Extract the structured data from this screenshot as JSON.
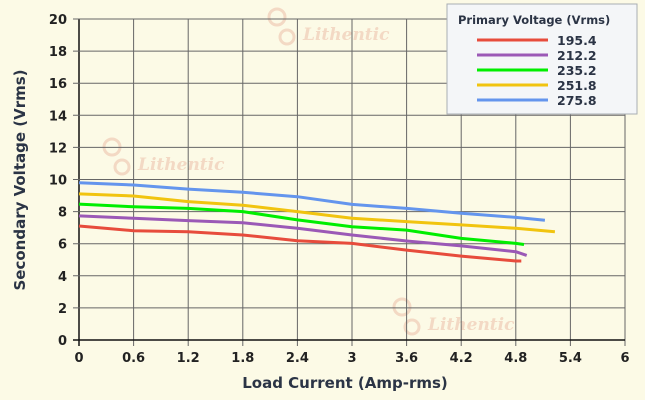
{
  "chart_data": {
    "type": "line",
    "xlabel": "Load Current (Amp-rms)",
    "ylabel": "Secondary Voltage (Vrms)",
    "xlim": [
      0,
      6
    ],
    "ylim": [
      0,
      20
    ],
    "xticks": [
      "0",
      "0.6",
      "1.2",
      "1.8",
      "2.4",
      "3",
      "3.6",
      "4.2",
      "4.8",
      "5.4",
      "6"
    ],
    "yticks": [
      "0",
      "2",
      "4",
      "6",
      "8",
      "10",
      "12",
      "14",
      "16",
      "18",
      "20"
    ],
    "grid": true,
    "legend": {
      "title": "Primary Voltage (Vrms)",
      "placement": "top-right"
    },
    "series": [
      {
        "name": "195.4",
        "color": "#e74c3c",
        "x": [
          0,
          0.6,
          1.2,
          1.8,
          2.4,
          3,
          3.6,
          4.2,
          4.8,
          4.86
        ],
        "y": [
          7.1,
          6.81,
          6.75,
          6.54,
          6.19,
          6.02,
          5.6,
          5.23,
          4.92,
          4.92
        ]
      },
      {
        "name": "212.2",
        "color": "#9b59b6",
        "x": [
          0,
          0.6,
          1.2,
          1.8,
          2.4,
          3,
          3.6,
          4.2,
          4.8,
          4.92
        ],
        "y": [
          7.73,
          7.58,
          7.44,
          7.31,
          6.96,
          6.54,
          6.17,
          5.86,
          5.5,
          5.27
        ]
      },
      {
        "name": "235.2",
        "color": "#00ee00",
        "x": [
          0,
          0.6,
          1.2,
          1.8,
          2.4,
          3,
          3.6,
          4.2,
          4.8,
          4.89
        ],
        "y": [
          8.47,
          8.3,
          8.2,
          8.0,
          7.48,
          7.06,
          6.85,
          6.33,
          6.02,
          5.95
        ]
      },
      {
        "name": "251.8",
        "color": "#f1c40f",
        "x": [
          0,
          0.6,
          1.2,
          1.8,
          2.4,
          3,
          3.6,
          4.2,
          4.8,
          5.23
        ],
        "y": [
          9.1,
          8.97,
          8.62,
          8.4,
          8.0,
          7.58,
          7.38,
          7.17,
          6.96,
          6.75
        ]
      },
      {
        "name": "275.8",
        "color": "#6495ed",
        "x": [
          0,
          0.6,
          1.2,
          1.8,
          2.4,
          3,
          3.6,
          4.2,
          4.8,
          5.12
        ],
        "y": [
          9.8,
          9.66,
          9.4,
          9.2,
          8.93,
          8.45,
          8.2,
          7.9,
          7.64,
          7.46
        ]
      }
    ]
  },
  "watermark": "Lithentic"
}
